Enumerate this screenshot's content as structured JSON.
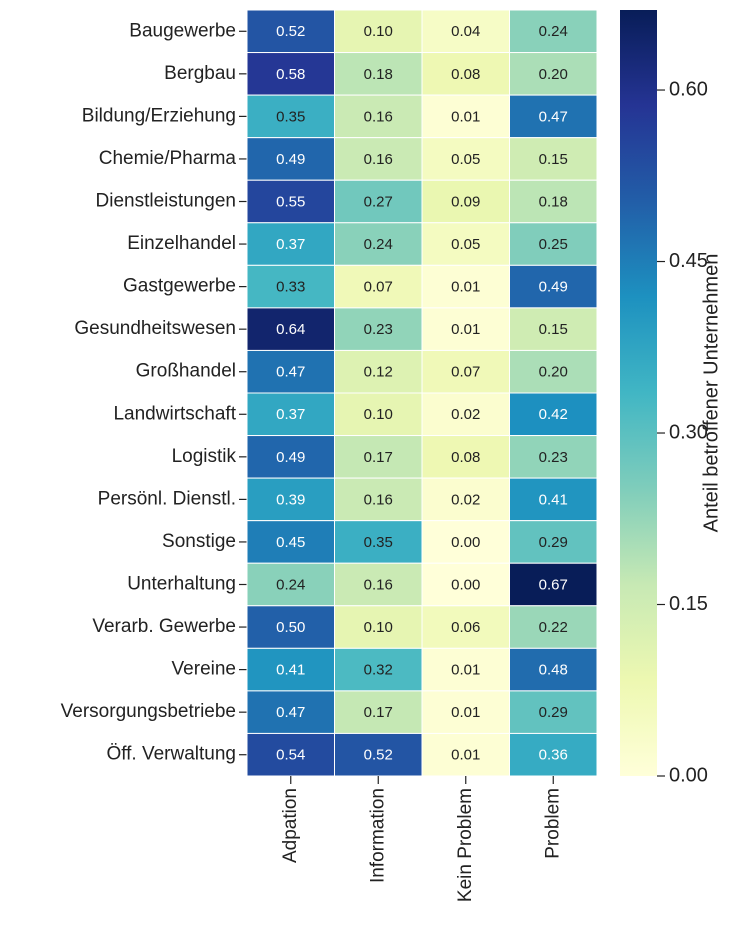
{
  "chart_data": {
    "type": "heatmap",
    "rows": [
      "Baugewerbe",
      "Bergbau",
      "Bildung/Erziehung",
      "Chemie/Pharma",
      "Dienstleistungen",
      "Einzelhandel",
      "Gastgewerbe",
      "Gesundheitswesen",
      "Großhandel",
      "Landwirtschaft",
      "Logistik",
      "Persönl. Dienstl.",
      "Sonstige",
      "Unterhaltung",
      "Verarb. Gewerbe",
      "Vereine",
      "Versorgungsbetriebe",
      "Öff. Verwaltung"
    ],
    "columns": [
      "Adpation",
      "Information",
      "Kein Problem",
      "Problem"
    ],
    "values": [
      [
        0.52,
        0.1,
        0.04,
        0.24
      ],
      [
        0.58,
        0.18,
        0.08,
        0.2
      ],
      [
        0.35,
        0.16,
        0.01,
        0.47
      ],
      [
        0.49,
        0.16,
        0.05,
        0.15
      ],
      [
        0.55,
        0.27,
        0.09,
        0.18
      ],
      [
        0.37,
        0.24,
        0.05,
        0.25
      ],
      [
        0.33,
        0.07,
        0.01,
        0.49
      ],
      [
        0.64,
        0.23,
        0.01,
        0.15
      ],
      [
        0.47,
        0.12,
        0.07,
        0.2
      ],
      [
        0.37,
        0.1,
        0.02,
        0.42
      ],
      [
        0.49,
        0.17,
        0.08,
        0.23
      ],
      [
        0.39,
        0.16,
        0.02,
        0.41
      ],
      [
        0.45,
        0.35,
        0.0,
        0.29
      ],
      [
        0.24,
        0.16,
        0.0,
        0.67
      ],
      [
        0.5,
        0.1,
        0.06,
        0.22
      ],
      [
        0.41,
        0.32,
        0.01,
        0.48
      ],
      [
        0.47,
        0.17,
        0.01,
        0.29
      ],
      [
        0.54,
        0.52,
        0.01,
        0.36
      ]
    ],
    "value_labels": [
      [
        "0.52",
        "0.10",
        "0.04",
        "0.24"
      ],
      [
        "0.58",
        "0.18",
        "0.08",
        "0.20"
      ],
      [
        "0.35",
        "0.16",
        "0.01",
        "0.47"
      ],
      [
        "0.49",
        "0.16",
        "0.05",
        "0.15"
      ],
      [
        "0.55",
        "0.27",
        "0.09",
        "0.18"
      ],
      [
        "0.37",
        "0.24",
        "0.05",
        "0.25"
      ],
      [
        "0.33",
        "0.07",
        "0.01",
        "0.49"
      ],
      [
        "0.64",
        "0.23",
        "0.01",
        "0.15"
      ],
      [
        "0.47",
        "0.12",
        "0.07",
        "0.20"
      ],
      [
        "0.37",
        "0.10",
        "0.02",
        "0.42"
      ],
      [
        "0.49",
        "0.17",
        "0.08",
        "0.23"
      ],
      [
        "0.39",
        "0.16",
        "0.02",
        "0.41"
      ],
      [
        "0.45",
        "0.35",
        "0.00",
        "0.29"
      ],
      [
        "0.24",
        "0.16",
        "0.00",
        "0.67"
      ],
      [
        "0.50",
        "0.10",
        "0.06",
        "0.22"
      ],
      [
        "0.41",
        "0.32",
        "0.01",
        "0.48"
      ],
      [
        "0.47",
        "0.17",
        "0.01",
        "0.29"
      ],
      [
        "0.54",
        "0.52",
        "0.01",
        "0.36"
      ]
    ],
    "colormap": "YlGnBu",
    "clim": [
      0,
      0.67
    ],
    "colorbar_label": "Anteil betroffener Unternehmen",
    "colorbar_ticks": [
      {
        "value": 0,
        "label": "0.00"
      },
      {
        "value": 0.15,
        "label": "0.15"
      },
      {
        "value": 0.3,
        "label": "0.30"
      },
      {
        "value": 0.45,
        "label": "0.45"
      },
      {
        "value": 0.6,
        "label": "0.60"
      }
    ]
  }
}
